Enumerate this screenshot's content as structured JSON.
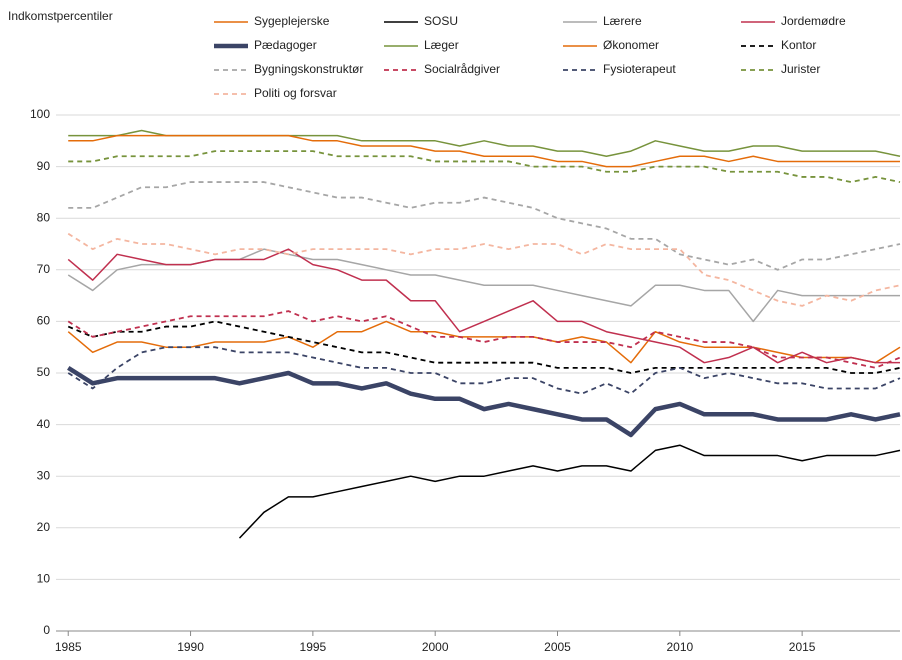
{
  "chart_data": {
    "type": "line",
    "ylabel": "Indkomstpercentiler",
    "x": [
      1985,
      1986,
      1987,
      1988,
      1989,
      1990,
      1991,
      1992,
      1993,
      1994,
      1995,
      1996,
      1997,
      1998,
      1999,
      2000,
      2001,
      2002,
      2003,
      2004,
      2005,
      2006,
      2007,
      2008,
      2009,
      2010,
      2011,
      2012,
      2013,
      2014,
      2015,
      2016,
      2017,
      2018,
      2019
    ],
    "xlim": [
      1984.5,
      2019
    ],
    "xticks": [
      1985,
      1990,
      1995,
      2000,
      2005,
      2010,
      2015
    ],
    "ylim": [
      0,
      100
    ],
    "yticks": [
      0,
      10,
      20,
      30,
      40,
      50,
      60,
      70,
      80,
      90,
      100
    ],
    "grid": true,
    "series": [
      {
        "name": "Sygeplejerske",
        "color": "#e46c0a",
        "dash": false,
        "width": 1.5,
        "values": [
          58,
          54,
          56,
          56,
          55,
          55,
          56,
          56,
          56,
          57,
          55,
          58,
          58,
          60,
          58,
          58,
          57,
          57,
          57,
          57,
          56,
          57,
          56,
          52,
          58,
          56,
          55,
          55,
          55,
          54,
          53,
          53,
          53,
          52,
          55
        ]
      },
      {
        "name": "SOSU",
        "color": "#000000",
        "dash": false,
        "width": 1.5,
        "values": [
          null,
          null,
          null,
          null,
          null,
          null,
          null,
          18,
          23,
          26,
          26,
          27,
          28,
          29,
          30,
          29,
          30,
          30,
          31,
          32,
          31,
          32,
          32,
          31,
          35,
          36,
          34,
          34,
          34,
          34,
          33,
          34,
          34,
          34,
          35
        ]
      },
      {
        "name": "Lærere",
        "color": "#a6a6a6",
        "dash": false,
        "width": 1.5,
        "values": [
          69,
          66,
          70,
          71,
          71,
          71,
          72,
          72,
          74,
          73,
          72,
          72,
          71,
          70,
          69,
          69,
          68,
          67,
          67,
          67,
          66,
          65,
          64,
          63,
          67,
          67,
          66,
          66,
          60,
          66,
          65,
          65,
          65,
          65,
          65
        ]
      },
      {
        "name": "Jordemødre",
        "color": "#c0304f",
        "dash": false,
        "width": 1.5,
        "values": [
          72,
          68,
          73,
          72,
          71,
          71,
          72,
          72,
          72,
          74,
          71,
          70,
          68,
          68,
          64,
          64,
          58,
          60,
          62,
          64,
          60,
          60,
          58,
          57,
          56,
          55,
          52,
          53,
          55,
          52,
          54,
          52,
          53,
          52,
          52
        ]
      },
      {
        "name": "Pædagoger",
        "color": "#3b4466",
        "dash": false,
        "width": 4.5,
        "values": [
          51,
          48,
          49,
          49,
          49,
          49,
          49,
          48,
          49,
          50,
          48,
          48,
          47,
          48,
          46,
          45,
          45,
          43,
          44,
          43,
          42,
          41,
          41,
          38,
          43,
          44,
          42,
          42,
          42,
          41,
          41,
          41,
          42,
          41,
          42
        ]
      },
      {
        "name": "Læger",
        "color": "#77933c",
        "dash": false,
        "width": 1.5,
        "values": [
          96,
          96,
          96,
          97,
          96,
          96,
          96,
          96,
          96,
          96,
          96,
          96,
          95,
          95,
          95,
          95,
          94,
          95,
          94,
          94,
          93,
          93,
          92,
          93,
          95,
          94,
          93,
          93,
          94,
          94,
          93,
          93,
          93,
          93,
          92
        ]
      },
      {
        "name": "Økonomer",
        "color": "#e46c0a",
        "dash": false,
        "width": 1.5,
        "values": [
          95,
          95,
          96,
          96,
          96,
          96,
          96,
          96,
          96,
          96,
          95,
          95,
          94,
          94,
          94,
          93,
          93,
          92,
          92,
          92,
          91,
          91,
          90,
          90,
          91,
          92,
          92,
          91,
          92,
          91,
          91,
          91,
          91,
          91,
          91
        ]
      },
      {
        "name": "Kontor",
        "color": "#000000",
        "dash": true,
        "width": 1.8,
        "values": [
          59,
          57,
          58,
          58,
          59,
          59,
          60,
          59,
          58,
          57,
          56,
          55,
          54,
          54,
          53,
          52,
          52,
          52,
          52,
          52,
          51,
          51,
          51,
          50,
          51,
          51,
          51,
          51,
          51,
          51,
          51,
          51,
          50,
          50,
          51
        ]
      },
      {
        "name": "Bygningskonstruktør",
        "color": "#a6a6a6",
        "dash": true,
        "width": 1.8,
        "values": [
          82,
          82,
          84,
          86,
          86,
          87,
          87,
          87,
          87,
          86,
          85,
          84,
          84,
          83,
          82,
          83,
          83,
          84,
          83,
          82,
          80,
          79,
          78,
          76,
          76,
          73,
          72,
          71,
          72,
          70,
          72,
          72,
          73,
          74,
          75
        ]
      },
      {
        "name": "Socialrådgiver",
        "color": "#c0304f",
        "dash": true,
        "width": 1.8,
        "values": [
          60,
          57,
          58,
          59,
          60,
          61,
          61,
          61,
          61,
          62,
          60,
          61,
          60,
          61,
          59,
          57,
          57,
          56,
          57,
          57,
          56,
          56,
          56,
          55,
          58,
          57,
          56,
          56,
          55,
          53,
          53,
          53,
          52,
          51,
          53
        ]
      },
      {
        "name": "Fysioterapeut",
        "color": "#3b4466",
        "dash": true,
        "width": 1.8,
        "values": [
          50,
          47,
          51,
          54,
          55,
          55,
          55,
          54,
          54,
          54,
          53,
          52,
          51,
          51,
          50,
          50,
          48,
          48,
          49,
          49,
          47,
          46,
          48,
          46,
          50,
          51,
          49,
          50,
          49,
          48,
          48,
          47,
          47,
          47,
          49
        ]
      },
      {
        "name": "Jurister",
        "color": "#77933c",
        "dash": true,
        "width": 1.8,
        "values": [
          91,
          91,
          92,
          92,
          92,
          92,
          93,
          93,
          93,
          93,
          93,
          92,
          92,
          92,
          92,
          91,
          91,
          91,
          91,
          90,
          90,
          90,
          89,
          89,
          90,
          90,
          90,
          89,
          89,
          89,
          88,
          88,
          87,
          88,
          87
        ]
      },
      {
        "name": "Politi og forsvar",
        "color": "#f4b6a0",
        "dash": true,
        "width": 1.8,
        "values": [
          77,
          74,
          76,
          75,
          75,
          74,
          73,
          74,
          74,
          73,
          74,
          74,
          74,
          74,
          73,
          74,
          74,
          75,
          74,
          75,
          75,
          73,
          75,
          74,
          74,
          74,
          69,
          68,
          66,
          64,
          63,
          65,
          64,
          66,
          67
        ]
      }
    ]
  }
}
